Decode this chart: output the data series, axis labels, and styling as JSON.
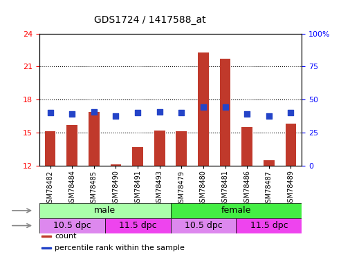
{
  "title": "GDS1724 / 1417588_at",
  "samples": [
    "GSM78482",
    "GSM78484",
    "GSM78485",
    "GSM78490",
    "GSM78491",
    "GSM78493",
    "GSM78479",
    "GSM78480",
    "GSM78481",
    "GSM78486",
    "GSM78487",
    "GSM78489"
  ],
  "count_values": [
    15.1,
    15.7,
    16.9,
    12.1,
    13.7,
    15.2,
    15.1,
    22.3,
    21.7,
    15.5,
    12.5,
    15.8
  ],
  "percentile_values": [
    16.8,
    16.7,
    16.9,
    16.5,
    16.8,
    16.9,
    16.8,
    17.3,
    17.3,
    16.7,
    16.5,
    16.8
  ],
  "ylim_left": [
    12,
    24
  ],
  "yticks_left": [
    12,
    15,
    18,
    21,
    24
  ],
  "ylim_right": [
    0,
    100
  ],
  "yticks_right": [
    0,
    25,
    50,
    75,
    100
  ],
  "bar_color": "#c0392b",
  "dot_color": "#2444c8",
  "grid_color": "#000000",
  "gender_groups": [
    {
      "label": "male",
      "start": 0,
      "end": 6,
      "color": "#aaffaa"
    },
    {
      "label": "female",
      "start": 6,
      "end": 12,
      "color": "#44ee44"
    }
  ],
  "age_groups": [
    {
      "label": "10.5 dpc",
      "start": 0,
      "end": 3,
      "color": "#dd88ee"
    },
    {
      "label": "11.5 dpc",
      "start": 3,
      "end": 6,
      "color": "#ee44ee"
    },
    {
      "label": "10.5 dpc",
      "start": 6,
      "end": 9,
      "color": "#dd88ee"
    },
    {
      "label": "11.5 dpc",
      "start": 9,
      "end": 12,
      "color": "#ee44ee"
    }
  ],
  "legend_items": [
    {
      "color": "#c0392b",
      "label": "count"
    },
    {
      "color": "#2444c8",
      "label": "percentile rank within the sample"
    }
  ],
  "bar_width": 0.5,
  "dot_size": 30,
  "xlabel_fontsize": 7,
  "tick_fontsize": 8,
  "title_fontsize": 10
}
